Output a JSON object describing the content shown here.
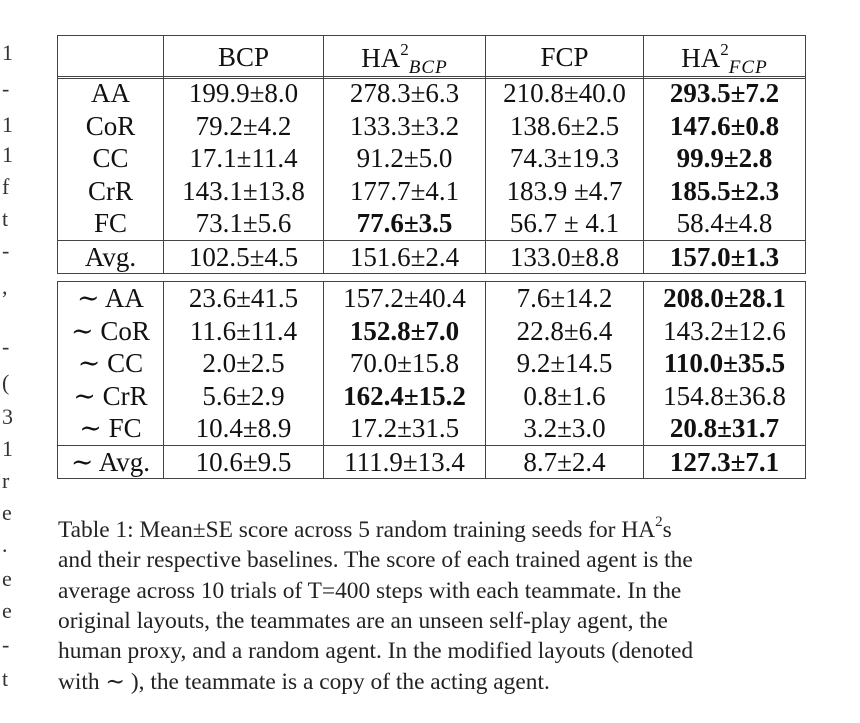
{
  "edge_chars": [
    "1",
    "-",
    "1",
    "1",
    "f",
    "t",
    "-",
    ",",
    "-",
    "(",
    "3",
    "1",
    "r",
    "e",
    ".",
    "e",
    "e",
    "-",
    "t"
  ],
  "header": {
    "empty": "",
    "col1": "BCP",
    "col2_main": "HA",
    "col2_sup": "2",
    "col2_sub": "BCP",
    "col3": "FCP",
    "col4_main": "HA",
    "col4_sup": "2",
    "col4_sub": "FCP"
  },
  "block1": {
    "labels": [
      "AA",
      "CoR",
      "CC",
      "CrR",
      "FC"
    ],
    "bcp": [
      "199.9±8.0",
      "79.2±4.2",
      "17.1±11.4",
      "143.1±13.8",
      "73.1±5.6"
    ],
    "ha2_bcp": [
      "278.3±6.3",
      "133.3±3.2",
      "91.2±5.0",
      "177.7±4.1",
      "77.6±3.5"
    ],
    "fcp": [
      "210.8±40.0",
      "138.6±2.5",
      "74.3±19.3",
      "183.9 ±4.7",
      "56.7 ± 4.1"
    ],
    "ha2_fcp": [
      "293.5±7.2",
      "147.6±0.8",
      "99.9±2.8",
      "185.5±2.3",
      "58.4±4.8"
    ],
    "avg": {
      "label": "Avg.",
      "bcp": "102.5±4.5",
      "ha2_bcp": "151.6±2.4",
      "fcp": "133.0±8.8",
      "ha2_fcp": "157.0±1.3"
    }
  },
  "block2": {
    "labels": [
      "∼ AA",
      "∼ CoR",
      "∼ CC",
      "∼ CrR",
      "∼ FC"
    ],
    "bcp": [
      "23.6±41.5",
      "11.6±11.4",
      "2.0±2.5",
      "5.6±2.9",
      "10.4±8.9"
    ],
    "ha2_bcp": [
      "157.2±40.4",
      "152.8±7.0",
      "70.0±15.8",
      "162.4±15.2",
      "17.2±31.5"
    ],
    "fcp": [
      "7.6±14.2",
      "22.8±6.4",
      "9.2±14.5",
      "0.8±1.6",
      "3.2±3.0"
    ],
    "ha2_fcp": [
      "208.0±28.1",
      "143.2±12.6",
      "110.0±35.5",
      "154.8±36.8",
      "20.8±31.7"
    ],
    "avg": {
      "label": "∼ Avg.",
      "bcp": "10.6±9.5",
      "ha2_bcp": "111.9±13.4",
      "fcp": "8.7±2.4",
      "ha2_fcp": "127.3±7.1"
    }
  },
  "caption": {
    "line1_a": "Table 1: Mean±SE score across 5 random training seeds for HA",
    "line1_sup": "2",
    "line1_b": "s",
    "line2": "and their respective baselines. The score of each trained agent is the",
    "line3": "average across 10 trials of T=400 steps with each teammate. In the",
    "line4": "original layouts, the teammates are an unseen self-play agent, the",
    "line5": "human proxy, and a random agent. In the modified layouts (denoted",
    "line6": "with ∼ ), the teammate is a copy of the acting agent."
  }
}
